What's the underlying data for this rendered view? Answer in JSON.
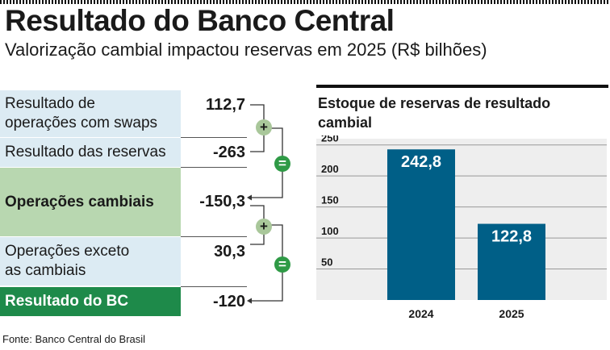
{
  "header": {
    "title": "Resultado do Banco Central",
    "subtitle": "Valorização cambial impactou reservas em 2025 (R$ bilhões)"
  },
  "breakdown": [
    {
      "label": "Resultado de operações com swaps",
      "value": "112,7"
    },
    {
      "label": "Resultado das reservas",
      "value": "-263"
    },
    {
      "label": "Operações cambiais",
      "value": "-150,3"
    },
    {
      "label": "Operações exceto as cambiais",
      "value": "30,3"
    },
    {
      "label": "Resultado do BC",
      "value": "-120"
    }
  ],
  "operators": {
    "plus": "+",
    "equals": "="
  },
  "source": "Fonte: Banco Central do Brasil",
  "colors": {
    "bar": "#005f87",
    "light_blue": "#dcebf3",
    "light_green": "#b8d7b0",
    "dark_green": "#1e8a4a",
    "operator_green": "#2f9a46"
  },
  "chart_data": {
    "type": "bar",
    "title": "Estoque de reservas de resultado cambial",
    "categories": [
      "2024",
      "2025"
    ],
    "values": [
      242.8,
      122.8
    ],
    "value_labels": [
      "242,8",
      "122,8"
    ],
    "ylim": [
      0,
      260
    ],
    "yticks": [
      50,
      100,
      150,
      200,
      250
    ],
    "grid": true,
    "xlabel": "",
    "ylabel": ""
  }
}
